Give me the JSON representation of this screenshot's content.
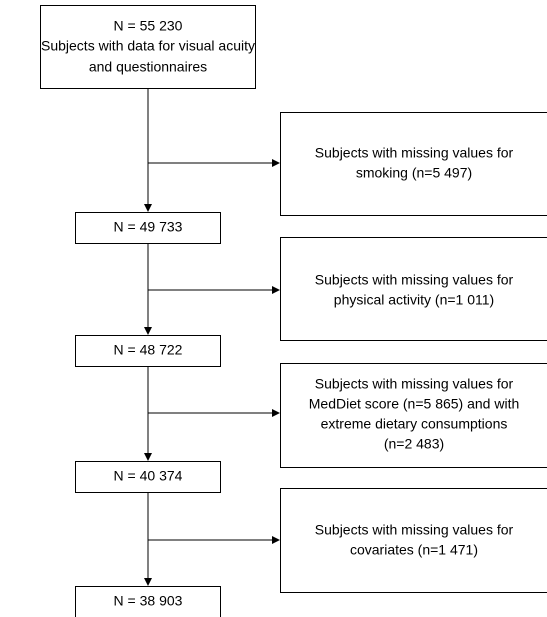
{
  "nodes": [
    {
      "lines": [
        "N = 55 230",
        "Subjects with data for visual acuity",
        "and questionnaires"
      ]
    },
    {
      "lines": [
        "N = 49 733"
      ]
    },
    {
      "lines": [
        "N = 48 722"
      ]
    },
    {
      "lines": [
        "N = 40 374"
      ]
    },
    {
      "lines": [
        "N = 38 903"
      ]
    }
  ],
  "exclusions": [
    {
      "lines": [
        "Subjects with missing values for",
        "smoking (n=5 497)"
      ]
    },
    {
      "lines": [
        "Subjects with missing values for",
        "physical activity (n=1 011)"
      ]
    },
    {
      "lines": [
        "Subjects with missing values for",
        "MedDiet score (n=5 865) and with",
        "extreme dietary consumptions",
        "(n=2 483)"
      ]
    },
    {
      "lines": [
        "Subjects with missing values for",
        "covariates (n=1 471)"
      ]
    }
  ]
}
